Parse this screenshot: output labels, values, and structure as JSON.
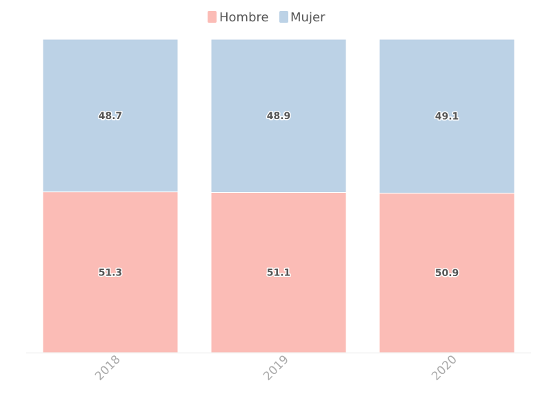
{
  "chart_data": {
    "type": "bar",
    "stacked": true,
    "categories": [
      "2018",
      "2019",
      "2020"
    ],
    "series": [
      {
        "name": "Hombre",
        "values": [
          51.3,
          51.1,
          50.9
        ],
        "color": "#fbbcb6"
      },
      {
        "name": "Mujer",
        "values": [
          48.7,
          48.9,
          49.1
        ],
        "color": "#bcd2e6"
      }
    ],
    "data_labels": {
      "Hombre": [
        "51.3",
        "51.1",
        "50.9"
      ],
      "Mujer": [
        "48.7",
        "48.9",
        "49.1"
      ]
    },
    "ylim": [
      0,
      100
    ],
    "grid": false,
    "legend": "top-center",
    "x_tick_rotation": -45,
    "label_color": "#555555",
    "tick_color": "#aaaaaa",
    "axis_color": "#e6e6e6"
  }
}
